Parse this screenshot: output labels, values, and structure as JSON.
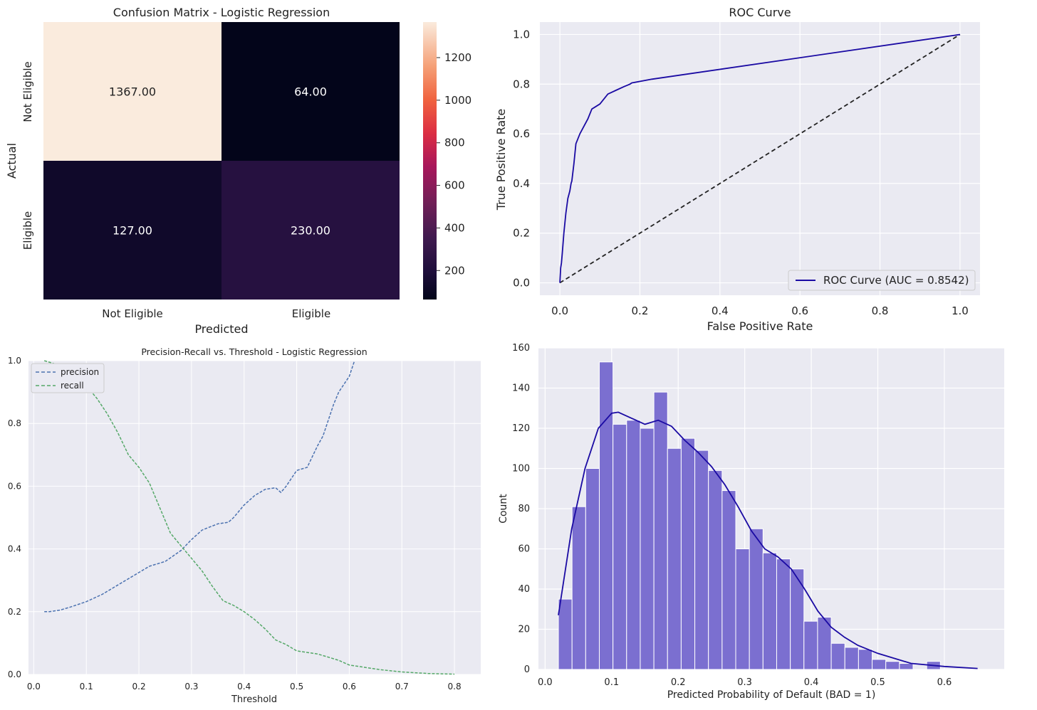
{
  "colors": {
    "panel_bg": "#eaeaf2",
    "grid": "#ffffff",
    "roc_line": "#1a0aa3",
    "diagonal": "#222222",
    "precision": "#4c72b0",
    "recall": "#55a868",
    "hist_fill": "#7b6fd0",
    "hist_edge": "#ffffff",
    "kde": "#1a0aa3",
    "heat_ramp": [
      "#03051a",
      "#2b1043",
      "#4c1d4b",
      "#a11a5b",
      "#e13342",
      "#f37651",
      "#f6b48f",
      "#faebdd"
    ]
  },
  "chart_data": [
    {
      "id": "confusion",
      "type": "heatmap",
      "title": "Confusion Matrix - Logistic Regression",
      "xlabel": "Predicted",
      "ylabel": "Actual",
      "x_categories": [
        "Not Eligible",
        "Eligible"
      ],
      "y_categories": [
        "Not Eligible",
        "Eligible"
      ],
      "values": [
        [
          1367,
          64
        ],
        [
          127,
          230
        ]
      ],
      "value_labels": [
        [
          "1367.00",
          "64.00"
        ],
        [
          "127.00",
          "230.00"
        ]
      ],
      "color_range": [
        64,
        1367
      ],
      "colorbar_ticks": [
        200,
        400,
        600,
        800,
        1000,
        1200
      ]
    },
    {
      "id": "roc",
      "type": "line",
      "title": "ROC Curve",
      "xlabel": "False Positive Rate",
      "ylabel": "True Positive Rate",
      "xlim": [
        -0.05,
        1.05
      ],
      "ylim": [
        -0.05,
        1.05
      ],
      "xticks": [
        0.0,
        0.2,
        0.4,
        0.6,
        0.8,
        1.0
      ],
      "yticks": [
        0.0,
        0.2,
        0.4,
        0.6,
        0.8,
        1.0
      ],
      "grid": true,
      "legend": "lower right",
      "series": [
        {
          "name": "ROC Curve (AUC = 0.8542)",
          "x": [
            0,
            0.002,
            0.004,
            0.006,
            0.01,
            0.015,
            0.02,
            0.025,
            0.028,
            0.03,
            0.035,
            0.04,
            0.045,
            0.05,
            0.06,
            0.07,
            0.08,
            0.09,
            0.1,
            0.11,
            0.12,
            0.14,
            0.16,
            0.175,
            0.18,
            0.23,
            1.0
          ],
          "y": [
            0,
            0.06,
            0.08,
            0.12,
            0.2,
            0.28,
            0.34,
            0.37,
            0.4,
            0.41,
            0.48,
            0.56,
            0.58,
            0.6,
            0.63,
            0.66,
            0.7,
            0.71,
            0.72,
            0.74,
            0.76,
            0.775,
            0.79,
            0.8,
            0.805,
            0.82,
            1.0
          ]
        },
        {
          "name": "",
          "style": "dashed",
          "x": [
            0,
            1
          ],
          "y": [
            0,
            1
          ]
        }
      ]
    },
    {
      "id": "pr",
      "type": "line",
      "title": "Precision-Recall vs. Threshold - Logistic Regression",
      "xlabel": "Threshold",
      "ylabel": "",
      "xlim": [
        -0.01,
        0.85
      ],
      "ylim": [
        0,
        1.0
      ],
      "xticks": [
        0.0,
        0.1,
        0.2,
        0.3,
        0.4,
        0.5,
        0.6,
        0.7,
        0.8
      ],
      "yticks": [
        0.0,
        0.2,
        0.4,
        0.6,
        0.8,
        1.0
      ],
      "grid": true,
      "legend": "upper left",
      "series": [
        {
          "name": "precision",
          "style": "dashed",
          "x": [
            0.02,
            0.03,
            0.05,
            0.07,
            0.1,
            0.13,
            0.16,
            0.19,
            0.22,
            0.25,
            0.28,
            0.3,
            0.32,
            0.35,
            0.37,
            0.38,
            0.4,
            0.42,
            0.44,
            0.46,
            0.47,
            0.48,
            0.5,
            0.52,
            0.54,
            0.55,
            0.57,
            0.58,
            0.6,
            0.61
          ],
          "y": [
            0.2,
            0.2,
            0.205,
            0.215,
            0.232,
            0.255,
            0.285,
            0.315,
            0.345,
            0.36,
            0.395,
            0.43,
            0.46,
            0.48,
            0.485,
            0.5,
            0.54,
            0.57,
            0.59,
            0.595,
            0.58,
            0.6,
            0.65,
            0.66,
            0.73,
            0.76,
            0.86,
            0.9,
            0.95,
            1.0
          ]
        },
        {
          "name": "recall",
          "style": "dashed",
          "x": [
            0.02,
            0.04,
            0.06,
            0.08,
            0.1,
            0.12,
            0.14,
            0.16,
            0.18,
            0.2,
            0.22,
            0.24,
            0.26,
            0.28,
            0.3,
            0.32,
            0.34,
            0.36,
            0.38,
            0.4,
            0.42,
            0.44,
            0.46,
            0.48,
            0.5,
            0.52,
            0.54,
            0.56,
            0.58,
            0.6,
            0.62,
            0.64,
            0.66,
            0.7,
            0.75,
            0.8
          ],
          "y": [
            1.0,
            0.99,
            0.97,
            0.95,
            0.92,
            0.88,
            0.83,
            0.77,
            0.7,
            0.66,
            0.61,
            0.53,
            0.45,
            0.41,
            0.37,
            0.33,
            0.28,
            0.235,
            0.22,
            0.2,
            0.175,
            0.145,
            0.11,
            0.095,
            0.075,
            0.07,
            0.065,
            0.055,
            0.045,
            0.03,
            0.025,
            0.02,
            0.015,
            0.008,
            0.003,
            0.001
          ]
        }
      ]
    },
    {
      "id": "hist",
      "type": "bar",
      "title": "",
      "xlabel": "Predicted Probability of Default (BAD = 1)",
      "ylabel": "Count",
      "xlim": [
        -0.01,
        0.69
      ],
      "ylim": [
        0,
        160
      ],
      "xticks": [
        0.0,
        0.1,
        0.2,
        0.3,
        0.4,
        0.5,
        0.6
      ],
      "yticks": [
        0,
        20,
        40,
        60,
        80,
        100,
        120,
        140,
        160
      ],
      "grid": true,
      "bin_start": 0.02,
      "bin_width": 0.0205,
      "counts": [
        35,
        81,
        100,
        153,
        122,
        124,
        120,
        138,
        110,
        115,
        109,
        99,
        89,
        60,
        70,
        58,
        55,
        50,
        24,
        26,
        13,
        11,
        10,
        5,
        4,
        3,
        0,
        4,
        0,
        0
      ],
      "kde": {
        "x": [
          0.02,
          0.04,
          0.06,
          0.08,
          0.1,
          0.11,
          0.13,
          0.15,
          0.17,
          0.19,
          0.21,
          0.23,
          0.25,
          0.27,
          0.29,
          0.31,
          0.33,
          0.35,
          0.37,
          0.39,
          0.41,
          0.43,
          0.45,
          0.47,
          0.5,
          0.55,
          0.6,
          0.65
        ],
        "y": [
          27,
          70,
          100,
          120,
          127.5,
          128,
          125,
          122,
          124,
          121,
          114,
          108,
          101,
          92,
          81,
          69,
          60,
          56,
          50,
          40,
          29,
          21,
          16,
          12,
          8,
          3,
          1.5,
          0.5
        ]
      }
    }
  ]
}
